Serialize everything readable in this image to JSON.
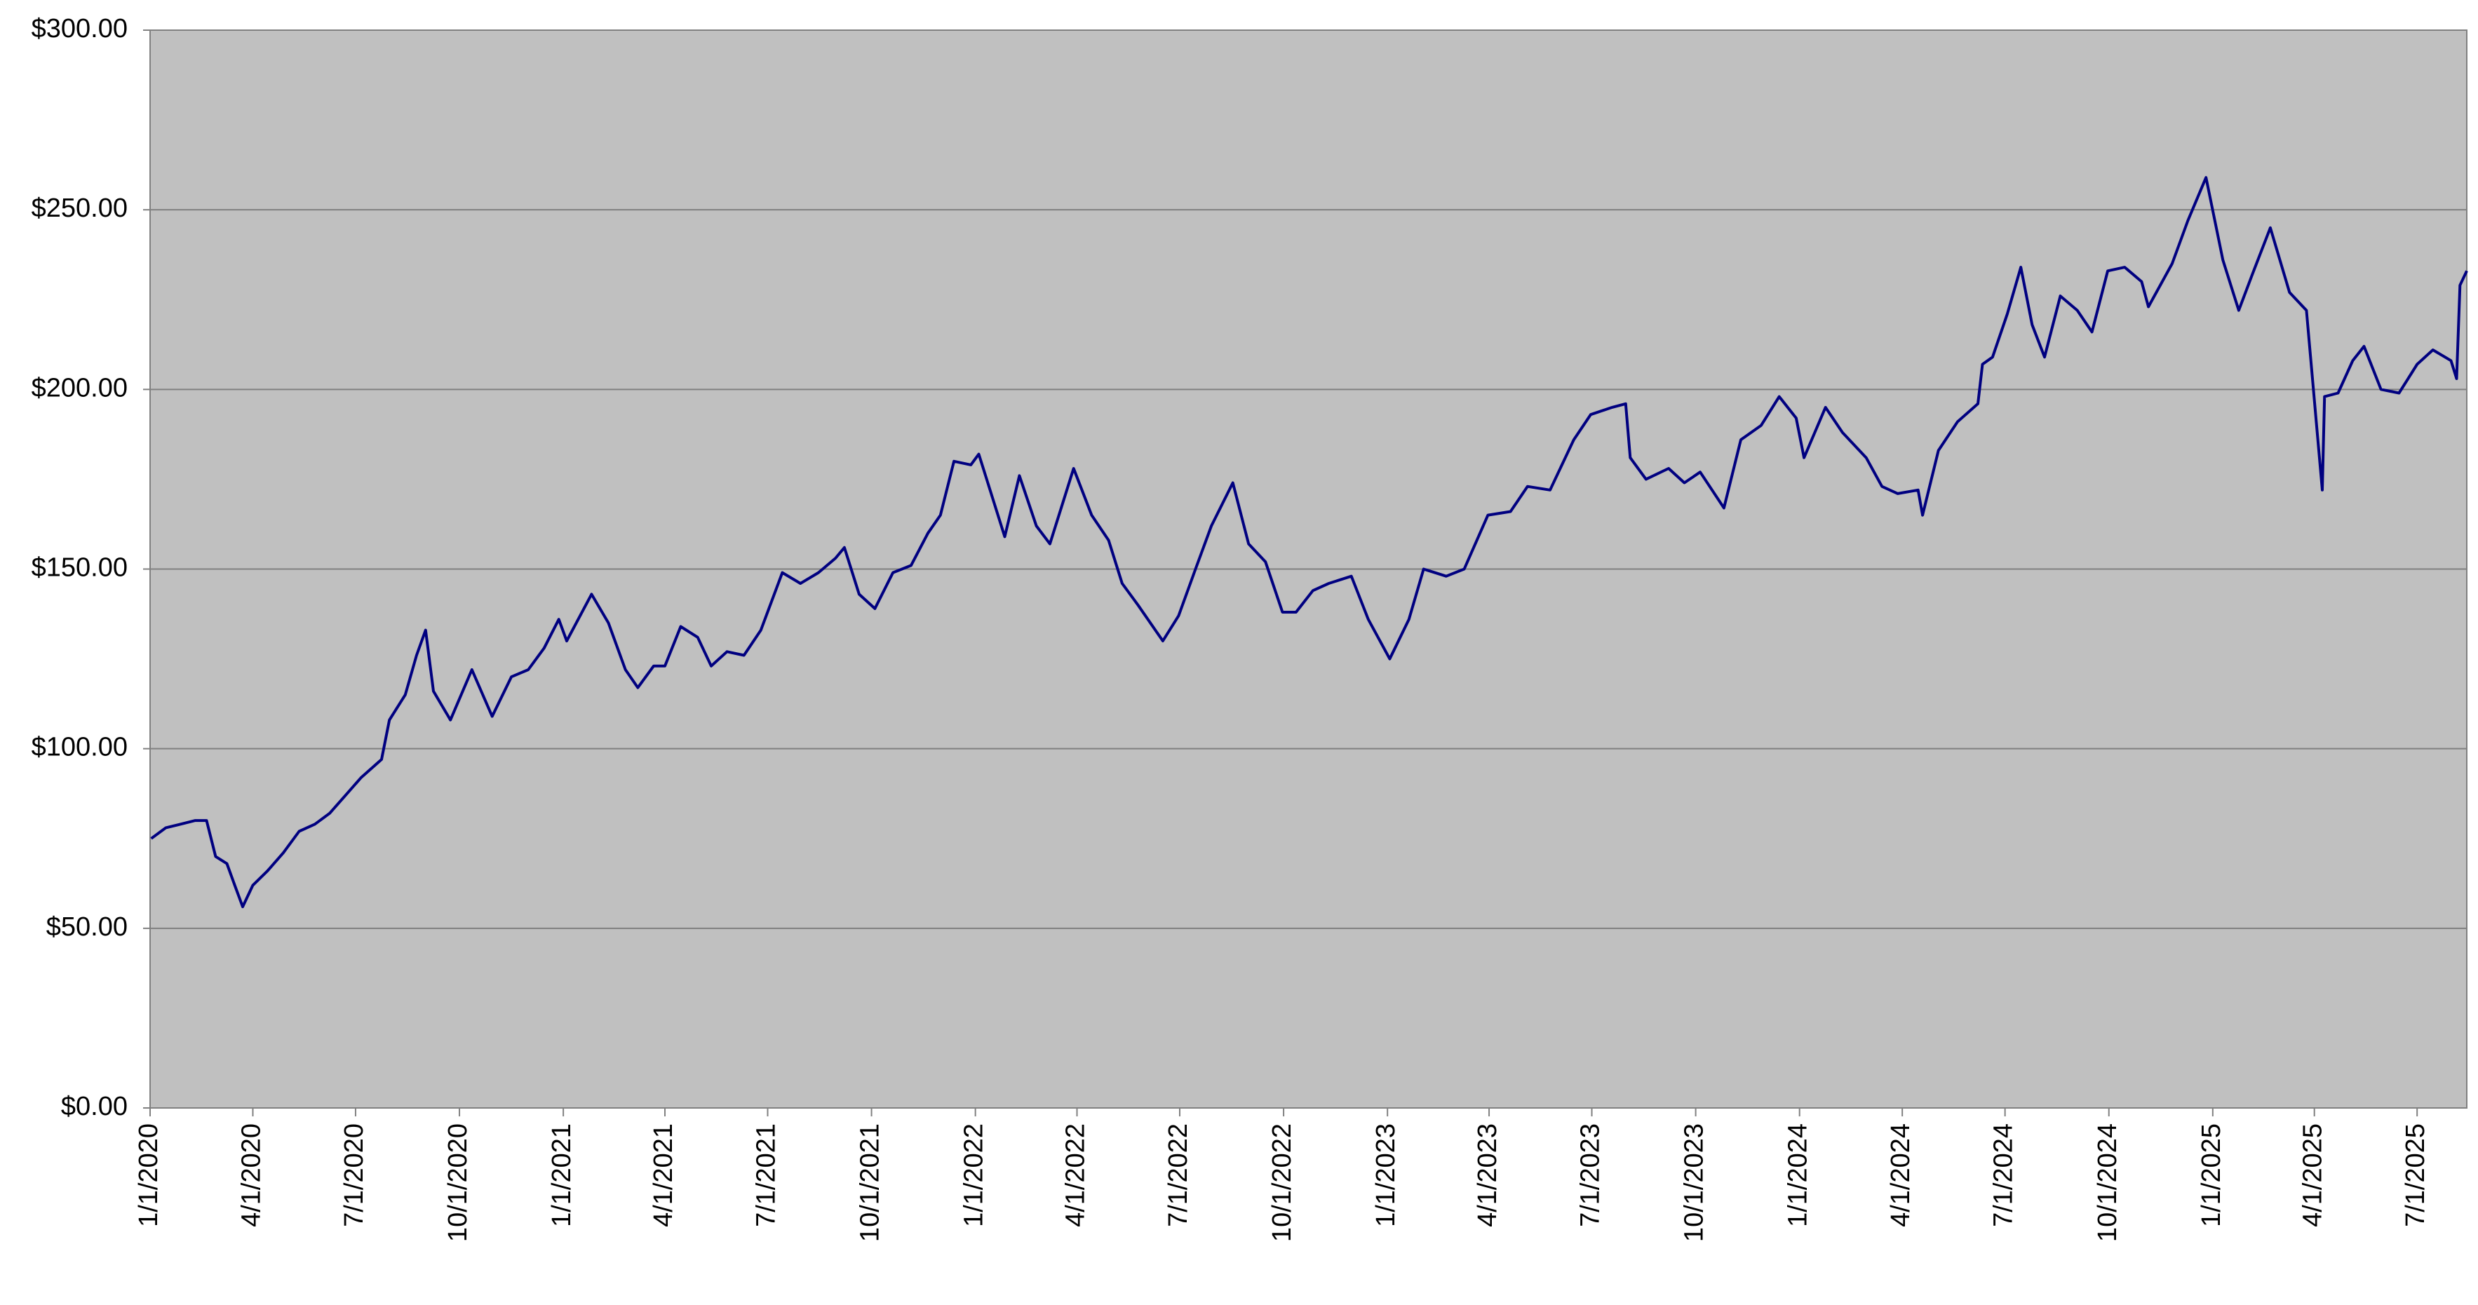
{
  "chart_data": {
    "type": "line",
    "color": "#000080",
    "grid": true,
    "xlim": [
      "1/1/2020",
      "8/14/2025"
    ],
    "xticks": [
      "1/1/2020",
      "4/1/2020",
      "7/1/2020",
      "10/1/2020",
      "1/1/2021",
      "4/1/2021",
      "7/1/2021",
      "10/1/2021",
      "1/1/2022",
      "4/1/2022",
      "7/1/2022",
      "10/1/2022",
      "1/1/2023",
      "4/1/2023",
      "7/1/2023",
      "10/1/2023",
      "1/1/2024",
      "4/1/2024",
      "7/1/2024",
      "10/1/2024",
      "1/1/2025",
      "4/1/2025",
      "7/1/2025"
    ],
    "ylim": [
      0,
      300
    ],
    "yticks": [
      {
        "value": 0,
        "label": "$0.00"
      },
      {
        "value": 50,
        "label": "$50.00"
      },
      {
        "value": 100,
        "label": "$100.00"
      },
      {
        "value": 150,
        "label": "$150.00"
      },
      {
        "value": 200,
        "label": "$200.00"
      },
      {
        "value": 250,
        "label": "$250.00"
      },
      {
        "value": 300,
        "label": "$300.00"
      }
    ],
    "x": [
      "1/2/2020",
      "1/15/2020",
      "1/28/2020",
      "2/10/2020",
      "2/20/2020",
      "2/28/2020",
      "3/9/2020",
      "3/16/2020",
      "3/23/2020",
      "4/1/2020",
      "4/14/2020",
      "4/28/2020",
      "5/12/2020",
      "5/26/2020",
      "6/8/2020",
      "6/22/2020",
      "7/6/2020",
      "7/24/2020",
      "7/31/2020",
      "8/14/2020",
      "8/24/2020",
      "9/1/2020",
      "9/8/2020",
      "9/23/2020",
      "10/12/2020",
      "10/30/2020",
      "11/16/2020",
      "12/1/2020",
      "12/15/2020",
      "12/28/2020",
      "1/4/2021",
      "1/26/2021",
      "2/10/2021",
      "2/25/2021",
      "3/8/2021",
      "3/22/2021",
      "4/1/2021",
      "4/15/2021",
      "4/30/2021",
      "5/12/2021",
      "5/26/2021",
      "6/10/2021",
      "6/25/2021",
      "7/14/2021",
      "7/30/2021",
      "8/15/2021",
      "8/30/2021",
      "9/7/2021",
      "9/20/2021",
      "10/4/2021",
      "10/20/2021",
      "11/5/2021",
      "11/20/2021",
      "12/1/2021",
      "12/13/2021",
      "12/28/2021",
      "1/4/2022",
      "1/27/2022",
      "2/9/2022",
      "2/24/2022",
      "3/8/2022",
      "3/29/2022",
      "4/14/2022",
      "4/29/2022",
      "5/11/2022",
      "5/25/2022",
      "6/16/2022",
      "6/30/2022",
      "7/15/2022",
      "7/29/2022",
      "8/17/2022",
      "8/31/2022",
      "9/15/2022",
      "9/30/2022",
      "10/12/2022",
      "10/27/2022",
      "11/10/2022",
      "11/30/2022",
      "12/15/2022",
      "1/3/2023",
      "1/20/2023",
      "2/2/2023",
      "2/22/2023",
      "3/10/2023",
      "3/31/2023",
      "4/20/2023",
      "5/5/2023",
      "5/25/2023",
      "6/15/2023",
      "6/30/2023",
      "7/19/2023",
      "7/31/2023",
      "8/4/2023",
      "8/18/2023",
      "9/7/2023",
      "9/21/2023",
      "10/5/2023",
      "10/26/2023",
      "11/10/2023",
      "11/28/2023",
      "12/14/2023",
      "12/29/2023",
      "1/5/2024",
      "1/24/2024",
      "2/8/2024",
      "2/29/2024",
      "3/14/2024",
      "3/28/2024",
      "4/15/2024",
      "4/19/2024",
      "5/3/2024",
      "5/20/2024",
      "6/7/2024",
      "6/11/2024",
      "6/20/2024",
      "7/3/2024",
      "7/15/2024",
      "7/25/2024",
      "8/5/2024",
      "8/19/2024",
      "9/3/2024",
      "9/16/2024",
      "9/30/2024",
      "10/15/2024",
      "10/30/2024",
      "11/5/2024",
      "11/26/2024",
      "12/10/2024",
      "12/26/2024",
      "1/10/2025",
      "1/24/2025",
      "2/5/2025",
      "2/21/2025",
      "3/10/2025",
      "3/25/2025",
      "4/8/2025",
      "4/10/2025",
      "4/22/2025",
      "5/5/2025",
      "5/15/2025",
      "5/30/2025",
      "6/15/2025",
      "7/1/2025",
      "7/15/2025",
      "7/31/2025",
      "8/5/2025",
      "8/8/2025",
      "8/14/2025"
    ],
    "values": [
      75,
      78,
      79,
      80,
      80,
      70,
      68,
      62,
      56,
      62,
      66,
      71,
      77,
      79,
      82,
      87,
      92,
      97,
      108,
      115,
      126,
      133,
      116,
      108,
      122,
      109,
      120,
      122,
      128,
      136,
      130,
      143,
      135,
      122,
      117,
      123,
      123,
      134,
      131,
      123,
      127,
      126,
      133,
      149,
      146,
      149,
      153,
      156,
      143,
      139,
      149,
      151,
      160,
      165,
      180,
      179,
      182,
      159,
      176,
      162,
      157,
      178,
      165,
      158,
      146,
      140,
      130,
      137,
      150,
      162,
      174,
      157,
      152,
      138,
      138,
      144,
      146,
      148,
      136,
      125,
      136,
      150,
      148,
      150,
      165,
      166,
      173,
      172,
      186,
      193,
      195,
      196,
      181,
      175,
      178,
      174,
      177,
      167,
      186,
      190,
      198,
      192,
      181,
      195,
      188,
      181,
      173,
      171,
      172,
      165,
      183,
      191,
      196,
      207,
      209,
      221,
      234,
      218,
      209,
      226,
      222,
      216,
      233,
      234,
      230,
      223,
      235,
      247,
      259,
      236,
      222,
      232,
      245,
      227,
      222,
      172,
      198,
      199,
      208,
      212,
      200,
      199,
      207,
      211,
      208,
      203,
      229,
      233
    ]
  }
}
